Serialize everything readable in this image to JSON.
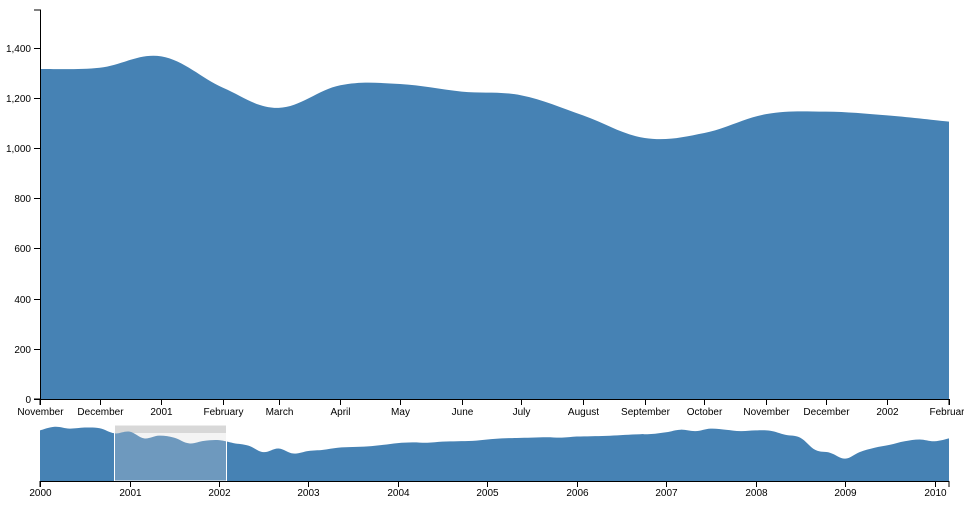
{
  "colors": {
    "area": "#4682b4",
    "brush_fill": "#d9d9d9",
    "brush_stroke": "#ffffff",
    "axis": "#000000"
  },
  "chart_data": [
    {
      "type": "area",
      "role": "focus",
      "title": "",
      "xlabel": "",
      "ylabel": "",
      "xlim": [
        "2000-11-01",
        "2002-02-01"
      ],
      "ylim": [
        0,
        1550
      ],
      "y_ticks": [
        0,
        200,
        400,
        600,
        800,
        1000,
        1200,
        1400
      ],
      "y_tick_labels": [
        "0",
        "200",
        "400",
        "600",
        "800",
        "1,000",
        "1,200",
        "1,400"
      ],
      "x_tick_dates": [
        "2000-11-01",
        "2000-12-01",
        "2001-01-01",
        "2001-02-01",
        "2001-03-01",
        "2001-04-01",
        "2001-05-01",
        "2001-06-01",
        "2001-07-01",
        "2001-08-01",
        "2001-09-01",
        "2001-10-01",
        "2001-11-01",
        "2001-12-01",
        "2002-01-01",
        "2002-02-01"
      ],
      "x_tick_labels": [
        "November",
        "December",
        "2001",
        "February",
        "March",
        "April",
        "May",
        "June",
        "July",
        "August",
        "September",
        "October",
        "November",
        "December",
        "2002",
        "February"
      ],
      "x": [
        "2000-11-01",
        "2000-12-01",
        "2001-01-01",
        "2001-02-01",
        "2001-03-01",
        "2001-04-01",
        "2001-05-01",
        "2001-06-01",
        "2001-07-01",
        "2001-08-01",
        "2001-09-01",
        "2001-10-01",
        "2001-11-01",
        "2001-12-01",
        "2002-01-01",
        "2002-02-01"
      ],
      "values": [
        1315,
        1320,
        1365,
        1240,
        1160,
        1250,
        1255,
        1225,
        1210,
        1130,
        1040,
        1060,
        1135,
        1145,
        1130,
        1105
      ],
      "grid": false,
      "legend": "none"
    },
    {
      "type": "area",
      "role": "context",
      "title": "",
      "xlabel": "",
      "ylabel": "",
      "xlim": [
        "2000-01-01",
        "2010-03-01"
      ],
      "ylim": [
        0,
        1550
      ],
      "x_tick_dates": [
        "2000-01-01",
        "2001-01-01",
        "2002-01-01",
        "2003-01-01",
        "2004-01-01",
        "2005-01-01",
        "2006-01-01",
        "2007-01-01",
        "2008-01-01",
        "2009-01-01",
        "2010-01-01"
      ],
      "x_tick_labels": [
        "2000",
        "2001",
        "2002",
        "2003",
        "2004",
        "2005",
        "2006",
        "2007",
        "2008",
        "2009",
        "2010"
      ],
      "x": [
        "2000-01-01",
        "2000-03-01",
        "2000-05-01",
        "2000-07-01",
        "2000-09-01",
        "2000-11-01",
        "2001-01-01",
        "2001-03-01",
        "2001-05-01",
        "2001-07-01",
        "2001-09-01",
        "2001-11-01",
        "2002-01-01",
        "2002-03-01",
        "2002-05-01",
        "2002-07-01",
        "2002-09-01",
        "2002-11-01",
        "2003-01-01",
        "2003-03-01",
        "2003-05-01",
        "2003-07-01",
        "2003-09-01",
        "2003-11-01",
        "2004-01-01",
        "2004-03-01",
        "2004-05-01",
        "2004-07-01",
        "2004-09-01",
        "2004-11-01",
        "2005-01-01",
        "2005-03-01",
        "2005-05-01",
        "2005-07-01",
        "2005-09-01",
        "2005-11-01",
        "2006-01-01",
        "2006-03-01",
        "2006-05-01",
        "2006-07-01",
        "2006-09-01",
        "2006-11-01",
        "2007-01-01",
        "2007-03-01",
        "2007-05-01",
        "2007-07-01",
        "2007-09-01",
        "2007-11-01",
        "2008-01-01",
        "2008-03-01",
        "2008-05-01",
        "2008-07-01",
        "2008-09-01",
        "2008-11-01",
        "2009-01-01",
        "2009-03-01",
        "2009-05-01",
        "2009-07-01",
        "2009-09-01",
        "2009-11-01",
        "2010-01-01",
        "2010-03-01"
      ],
      "values": [
        1400,
        1500,
        1450,
        1480,
        1460,
        1320,
        1365,
        1180,
        1255,
        1200,
        1040,
        1110,
        1130,
        1050,
        980,
        800,
        900,
        760,
        830,
        860,
        920,
        940,
        960,
        1000,
        1050,
        1070,
        1060,
        1090,
        1100,
        1110,
        1150,
        1180,
        1190,
        1200,
        1210,
        1200,
        1230,
        1240,
        1250,
        1270,
        1290,
        1300,
        1350,
        1420,
        1380,
        1450,
        1420,
        1380,
        1400,
        1390,
        1280,
        1200,
        860,
        780,
        620,
        800,
        920,
        1000,
        1100,
        1150,
        1100,
        1180
      ],
      "brush_extent": [
        "2000-11-01",
        "2002-02-01"
      ],
      "grid": false,
      "legend": "none"
    }
  ]
}
